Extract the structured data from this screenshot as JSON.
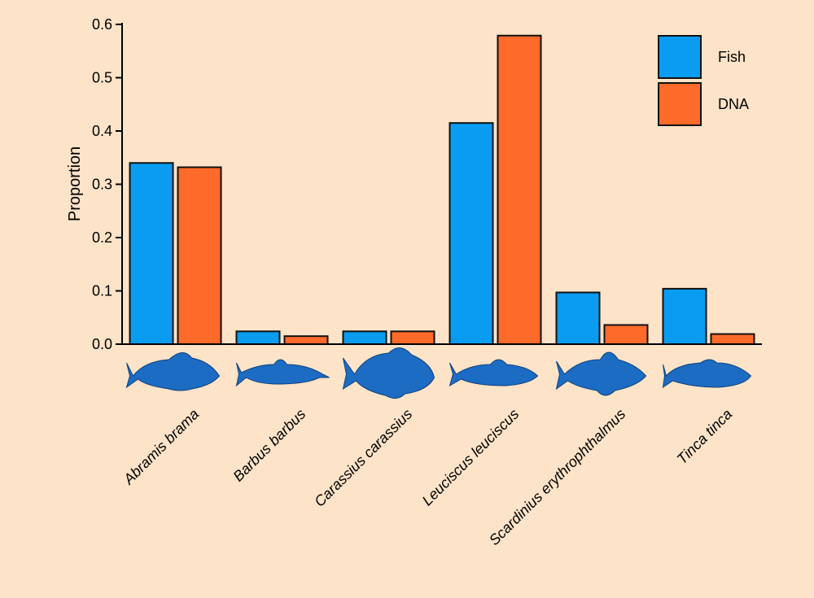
{
  "chart_data": {
    "type": "bar",
    "title": "",
    "xlabel": "",
    "ylabel": "Proportion",
    "ylim": [
      0,
      0.6
    ],
    "yticks": [
      "0.0",
      "0.1",
      "0.2",
      "0.3",
      "0.4",
      "0.5",
      "0.6"
    ],
    "grid": false,
    "legend_position": "top-right",
    "categories": [
      "Abramis brama",
      "Barbus barbus",
      "Carassius carassius",
      "Leuciscus leuciscus",
      "Scardinius erythrophthalmus",
      "Tinca tinca"
    ],
    "series": [
      {
        "name": "Fish",
        "color": "#0a9cf0",
        "values": [
          0.34,
          0.024,
          0.024,
          0.415,
          0.097,
          0.104
        ]
      },
      {
        "name": "DNA",
        "color": "#fd6a2a",
        "values": [
          0.332,
          0.015,
          0.024,
          0.579,
          0.036,
          0.019
        ]
      }
    ],
    "category_icons": [
      "bream-fish-icon",
      "barbel-fish-icon",
      "crucian-carp-fish-icon",
      "dace-fish-icon",
      "rudd-fish-icon",
      "tench-fish-icon"
    ],
    "icon_color": "#1c6cc4",
    "background": "#fde3c8"
  }
}
